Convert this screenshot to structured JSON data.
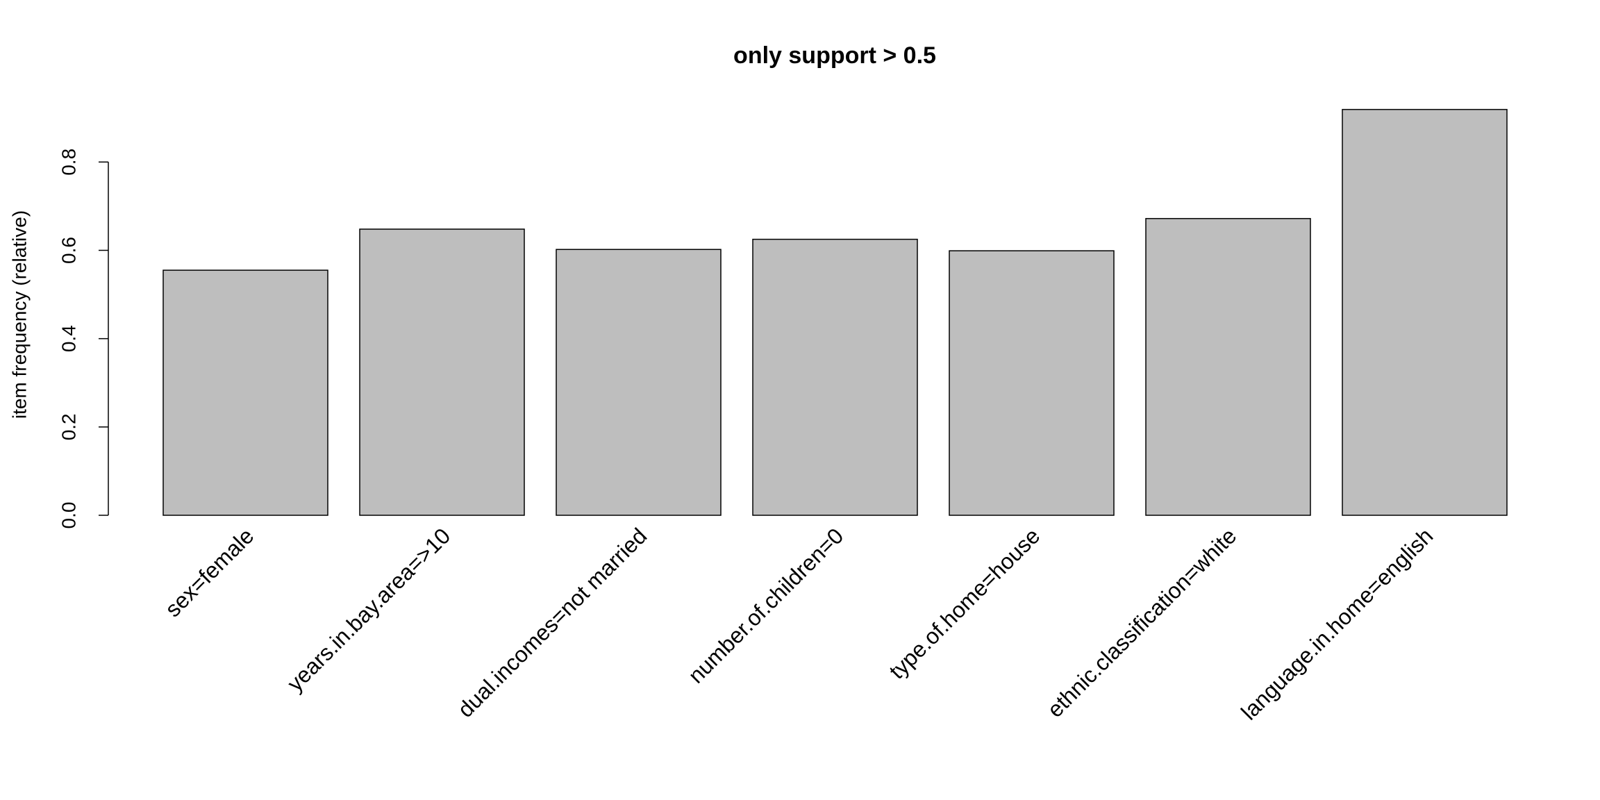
{
  "chart_data": {
    "type": "bar",
    "title": "only support > 0.5",
    "y_label": "item frequency (relative)",
    "categories": [
      "sex=female",
      "years.in.bay.area=>10",
      "dual.incomes=not married",
      "number.of.children=0",
      "type.of.home=house",
      "ethnic.classification=white",
      "language.in.home=english"
    ],
    "values": [
      0.555,
      0.648,
      0.602,
      0.625,
      0.599,
      0.672,
      0.919
    ],
    "color": "#bebebe",
    "ylim": [
      0,
      0.92
    ],
    "yticks": [
      {
        "value": 0,
        "label": "0.0"
      },
      0.2,
      0.4,
      0.6,
      0.8
    ],
    "grid": false
  }
}
